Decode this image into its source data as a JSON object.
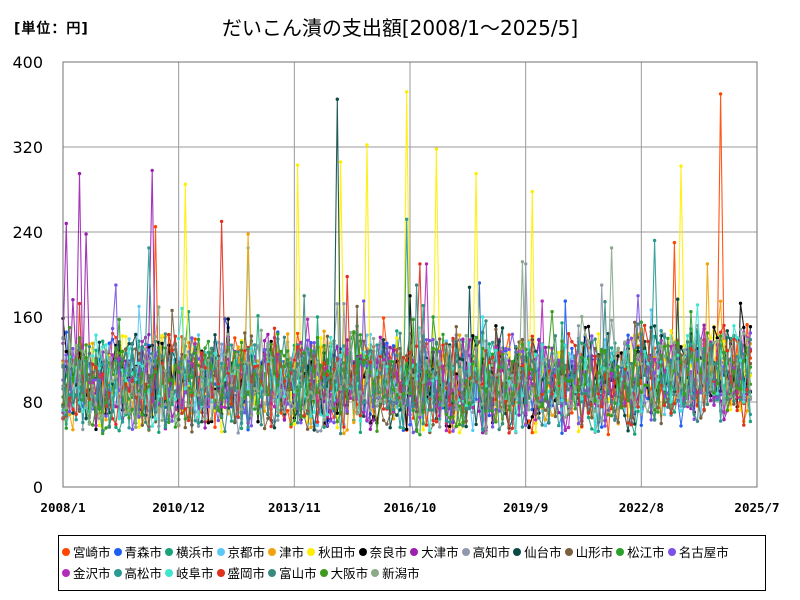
{
  "unit_label": "[単位：円]",
  "chart_data": {
    "type": "line",
    "title": "だいこん漬の支出額[2008/1～2025/5]",
    "xlabel": "",
    "ylabel": "",
    "ylim": [
      0,
      400
    ],
    "y_ticks": [
      0,
      80,
      160,
      240,
      320,
      400
    ],
    "x_range": [
      "2008-01",
      "2025-07"
    ],
    "x_tick_labels": [
      "2008/1",
      "2010/12",
      "2013/11",
      "2016/10",
      "2019/9",
      "2022/8",
      "2025/7"
    ],
    "grid": true,
    "legend_position": "bottom",
    "series": [
      {
        "name": "宮崎市",
        "color": "#ff4500",
        "peaks": [
          [
            "2010-05",
            245
          ],
          [
            "2024-08",
            370
          ],
          [
            "2023-06",
            230
          ]
        ]
      },
      {
        "name": "青森市",
        "color": "#1e5ef0",
        "peaks": [
          [
            "2018-07",
            192
          ],
          [
            "2020-09",
            175
          ]
        ]
      },
      {
        "name": "横浜市",
        "color": "#1aa37a",
        "peaks": [
          [
            "2011-03",
            165
          ],
          [
            "2014-06",
            160
          ]
        ]
      },
      {
        "name": "京都市",
        "color": "#5bc8f5",
        "peaks": [
          [
            "2012-09",
            225
          ],
          [
            "2009-12",
            170
          ]
        ]
      },
      {
        "name": "津市",
        "color": "#f0a30a",
        "peaks": [
          [
            "2012-09",
            238
          ],
          [
            "2024-04",
            210
          ]
        ]
      },
      {
        "name": "秋田市",
        "color": "#ffee00",
        "peaks": [
          [
            "2016-09",
            372
          ],
          [
            "2015-09",
            322
          ],
          [
            "2017-06",
            318
          ],
          [
            "2018-06",
            295
          ],
          [
            "2015-01",
            306
          ],
          [
            "2013-12",
            303
          ],
          [
            "2011-02",
            285
          ],
          [
            "2019-11",
            278
          ],
          [
            "2023-08",
            302
          ]
        ]
      },
      {
        "name": "奈良市",
        "color": "#000000",
        "peaks": [
          [
            "2016-10",
            180
          ],
          [
            "2021-03",
            150
          ]
        ]
      },
      {
        "name": "大津市",
        "color": "#9a20b0",
        "peaks": [
          [
            "2008-06",
            295
          ],
          [
            "2010-04",
            298
          ],
          [
            "2008-02",
            248
          ],
          [
            "2008-08",
            238
          ]
        ]
      },
      {
        "name": "高知市",
        "color": "#8e9aab",
        "peaks": [
          [
            "2019-09",
            210
          ],
          [
            "2021-08",
            190
          ]
        ]
      },
      {
        "name": "仙台市",
        "color": "#0a4a46",
        "peaks": [
          [
            "2014-12",
            365
          ],
          [
            "2018-04",
            188
          ]
        ]
      },
      {
        "name": "山形市",
        "color": "#7a6040",
        "peaks": [
          [
            "2015-06",
            170
          ],
          [
            "2022-06",
            155
          ]
        ]
      },
      {
        "name": "松江市",
        "color": "#2ca02c",
        "peaks": [
          [
            "2017-05",
            160
          ],
          [
            "2023-11",
            165
          ]
        ]
      },
      {
        "name": "名古屋市",
        "color": "#7b52e6",
        "peaks": [
          [
            "2009-05",
            190
          ],
          [
            "2015-08",
            175
          ]
        ]
      },
      {
        "name": "金沢市",
        "color": "#b32eb8",
        "peaks": [
          [
            "2017-03",
            210
          ],
          [
            "2020-02",
            175
          ]
        ]
      },
      {
        "name": "高松市",
        "color": "#2a9a92",
        "peaks": [
          [
            "2016-09",
            252
          ],
          [
            "2022-12",
            232
          ],
          [
            "2010-03",
            225
          ]
        ]
      },
      {
        "name": "岐阜市",
        "color": "#3ee6d0",
        "peaks": [
          [
            "2011-01",
            168
          ],
          [
            "2018-08",
            160
          ]
        ]
      },
      {
        "name": "盛岡市",
        "color": "#e0301e",
        "peaks": [
          [
            "2012-01",
            250
          ],
          [
            "2017-01",
            210
          ],
          [
            "2015-03",
            198
          ]
        ]
      },
      {
        "name": "富山市",
        "color": "#3a8a82",
        "peaks": [
          [
            "2014-02",
            180
          ],
          [
            "2016-12",
            190
          ]
        ]
      },
      {
        "name": "大阪市",
        "color": "#3c9a1c",
        "peaks": [
          [
            "2008-03",
            150
          ],
          [
            "2020-05",
            165
          ]
        ]
      },
      {
        "name": "新潟市",
        "color": "#8aaa8a",
        "peaks": [
          [
            "2021-11",
            225
          ],
          [
            "2019-08",
            212
          ]
        ]
      }
    ]
  }
}
